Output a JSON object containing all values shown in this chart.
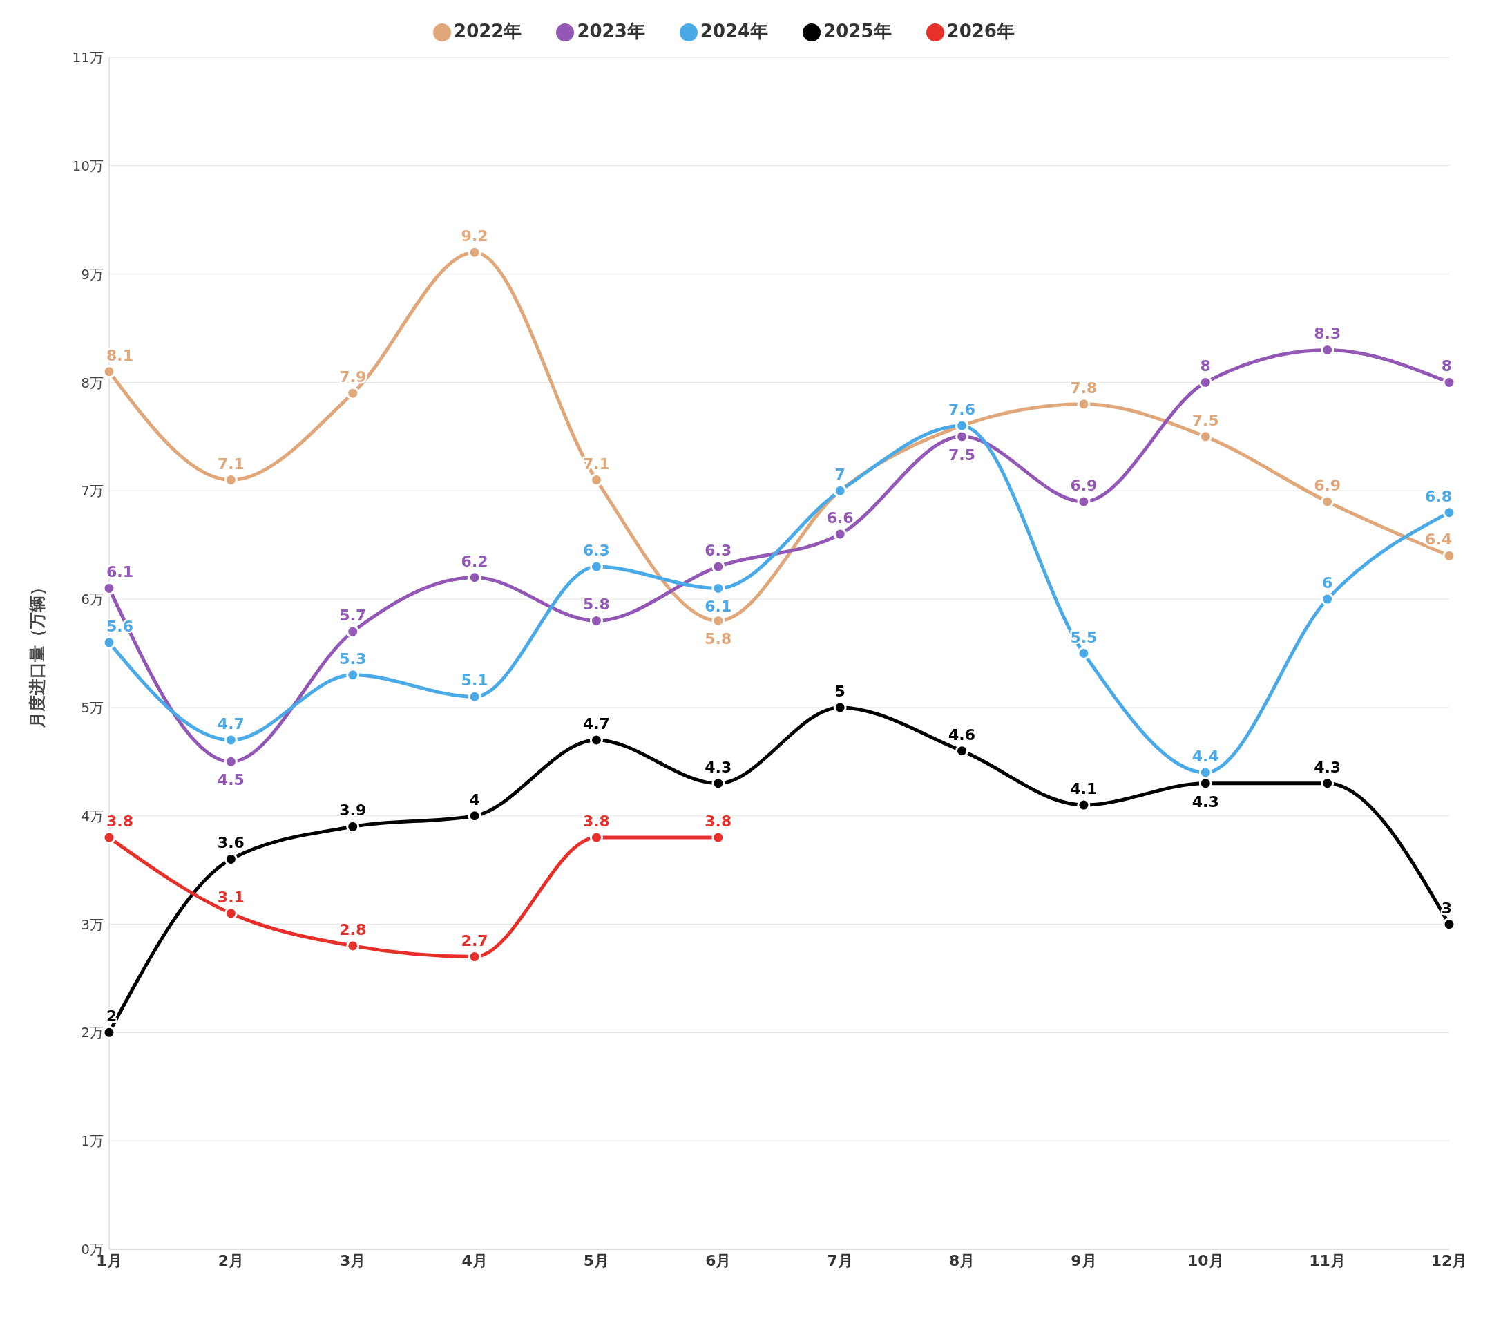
{
  "chart_data": {
    "type": "line",
    "ylabel": "月度进口量（万辆）",
    "categories": [
      "1月",
      "2月",
      "3月",
      "4月",
      "5月",
      "6月",
      "7月",
      "8月",
      "9月",
      "10月",
      "11月",
      "12月"
    ],
    "ylim": [
      0,
      11
    ],
    "yticks": [
      {
        "value": 0,
        "label": "0万"
      },
      {
        "value": 1,
        "label": "1万"
      },
      {
        "value": 2,
        "label": "2万"
      },
      {
        "value": 3,
        "label": "3万"
      },
      {
        "value": 4,
        "label": "4万"
      },
      {
        "value": 5,
        "label": "5万"
      },
      {
        "value": 6,
        "label": "6万"
      },
      {
        "value": 7,
        "label": "7万"
      },
      {
        "value": 8,
        "label": "8万"
      },
      {
        "value": 9,
        "label": "9万"
      },
      {
        "value": 10,
        "label": "10万"
      },
      {
        "value": 11,
        "label": "11万"
      }
    ],
    "grid": "y",
    "legend": "top",
    "marker": "circle",
    "line_style": "solid",
    "data_labels": true,
    "series": [
      {
        "name": "2022年",
        "color": "#e0a87a",
        "values": [
          8.1,
          7.1,
          7.9,
          9.2,
          7.1,
          5.8,
          7,
          7.6,
          7.8,
          7.5,
          6.9,
          6.4
        ],
        "value_labels": [
          "8.1",
          "7.1",
          "7.9",
          "9.2",
          "7.1",
          "5.8",
          null,
          null,
          "7.8",
          "7.5",
          "6.9",
          "6.4"
        ]
      },
      {
        "name": "2023年",
        "color": "#9357b5",
        "values": [
          6.1,
          4.5,
          5.7,
          6.2,
          5.8,
          6.3,
          6.6,
          7.5,
          6.9,
          8,
          8.3,
          8
        ]
      },
      {
        "name": "2024年",
        "color": "#4aaae8",
        "values": [
          5.6,
          4.7,
          5.3,
          5.1,
          6.3,
          6.1,
          7,
          7.6,
          5.5,
          4.4,
          6,
          6.8
        ]
      },
      {
        "name": "2025年",
        "color": "#000000",
        "values": [
          2,
          3.6,
          3.9,
          4,
          4.7,
          4.3,
          5,
          4.6,
          4.1,
          4.3,
          4.3,
          3
        ]
      },
      {
        "name": "2026年",
        "color": "#e8302a",
        "values": [
          3.8,
          3.1,
          2.8,
          2.7,
          3.8,
          3.8,
          null,
          null,
          null,
          null,
          null,
          null
        ]
      }
    ]
  }
}
